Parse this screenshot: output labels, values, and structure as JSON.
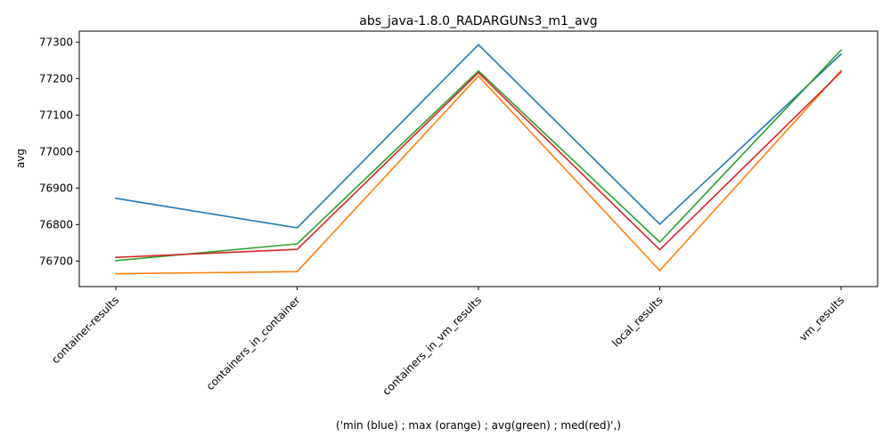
{
  "chart_data": {
    "type": "line",
    "title": "abs_java-1.8.0_RADARGUNs3_m1_avg",
    "xlabel": "('min (blue) ; max (orange) ; avg(green) ; med(red)',)",
    "ylabel": "avg",
    "categories": [
      "container-results",
      "containers_in_container",
      "containers_in_vm_results",
      "local_results",
      "vm_results"
    ],
    "ylim": [
      76630,
      77330
    ],
    "yticks": [
      76700,
      76800,
      76900,
      77000,
      77100,
      77200,
      77300
    ],
    "grid": false,
    "series": [
      {
        "color": "#1f77b4",
        "values": [
          76872,
          76791,
          77293,
          76801,
          77267
        ]
      },
      {
        "color": "#ff7f0e",
        "values": [
          76665,
          76671,
          77207,
          76674,
          77222
        ]
      },
      {
        "color": "#2ca02c",
        "values": [
          76701,
          76747,
          77221,
          76752,
          77278
        ]
      },
      {
        "color": "#d62728",
        "values": [
          76710,
          76732,
          77216,
          76731,
          77218
        ]
      }
    ]
  }
}
